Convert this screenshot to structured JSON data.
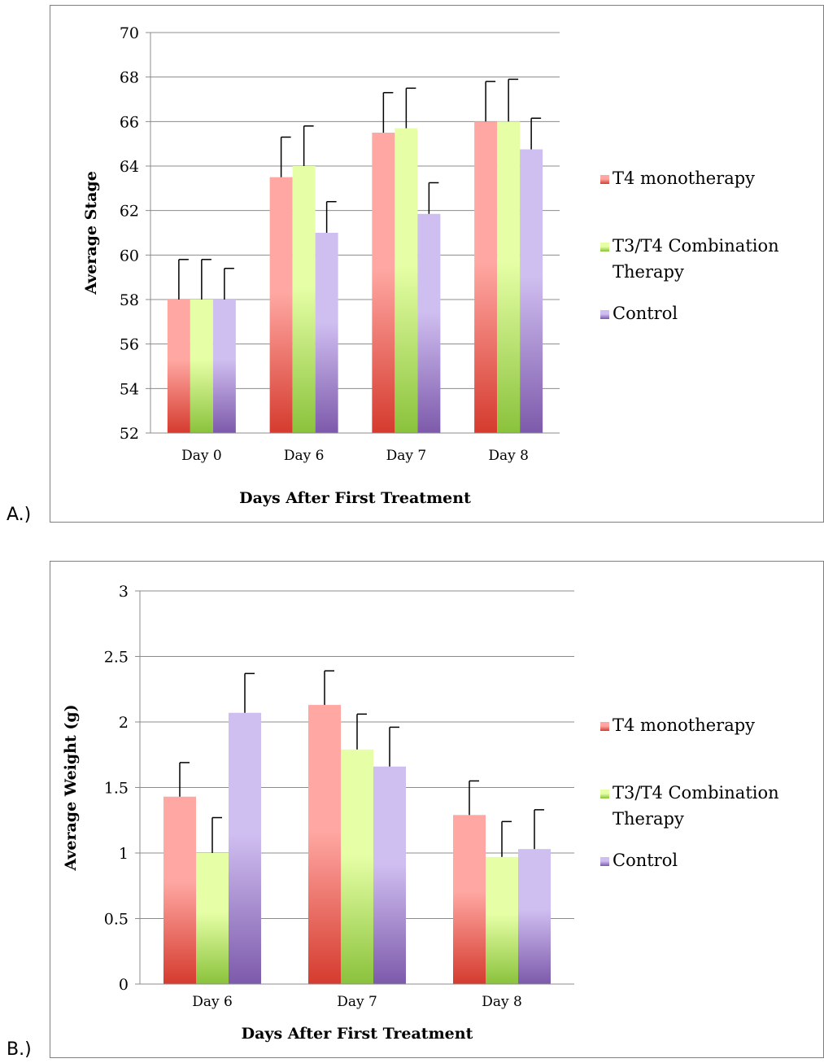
{
  "panels": {
    "a": {
      "tag": "A.)"
    },
    "b": {
      "tag": "B.)"
    }
  },
  "colors": {
    "series": [
      {
        "light": "#ffa8a3",
        "dark": "#d53b2e"
      },
      {
        "light": "#e6ffa6",
        "dark": "#8ac23c"
      },
      {
        "light": "#cfbef0",
        "dark": "#7d5aab"
      }
    ],
    "grid": "#8c8c8c",
    "error_bar": "#000000"
  },
  "chart_data": [
    {
      "type": "bar",
      "title": "",
      "xlabel": "Days After First Treatment",
      "ylabel": "Average Stage",
      "categories": [
        "Day 0",
        "Day 6",
        "Day 7",
        "Day 8"
      ],
      "ylim": [
        52,
        70
      ],
      "yticks": [
        "52",
        "54",
        "56",
        "58",
        "60",
        "62",
        "64",
        "66",
        "68",
        "70"
      ],
      "grid": true,
      "legend_position": "right",
      "series": [
        {
          "name": "T4 monotherapy",
          "values": [
            58,
            63.5,
            65.5,
            66
          ],
          "errors": [
            1.8,
            1.8,
            1.8,
            1.8
          ]
        },
        {
          "name": "T3/T4 Combination Therapy",
          "values": [
            58,
            64,
            65.7,
            66
          ],
          "errors": [
            1.8,
            1.8,
            1.8,
            1.9
          ]
        },
        {
          "name": "Control",
          "values": [
            58,
            61,
            61.85,
            64.75
          ],
          "errors": [
            1.4,
            1.4,
            1.4,
            1.4
          ]
        }
      ]
    },
    {
      "type": "bar",
      "title": "",
      "xlabel": "Days After First Treatment",
      "ylabel": "Average Weight (g)",
      "categories": [
        "Day 6",
        "Day 7",
        "Day 8"
      ],
      "ylim": [
        0,
        3
      ],
      "yticks": [
        "0",
        "0.5",
        "1",
        "1.5",
        "2",
        "2.5",
        "3"
      ],
      "grid": true,
      "legend_position": "right",
      "series": [
        {
          "name": "T4 monotherapy",
          "values": [
            1.43,
            2.13,
            1.29
          ],
          "errors": [
            0.26,
            0.26,
            0.26
          ]
        },
        {
          "name": "T3/T4 Combination Therapy",
          "values": [
            1.0,
            1.79,
            0.97
          ],
          "errors": [
            0.27,
            0.27,
            0.27
          ]
        },
        {
          "name": "Control",
          "values": [
            2.07,
            1.66,
            1.03
          ],
          "errors": [
            0.3,
            0.3,
            0.3
          ]
        }
      ]
    }
  ]
}
